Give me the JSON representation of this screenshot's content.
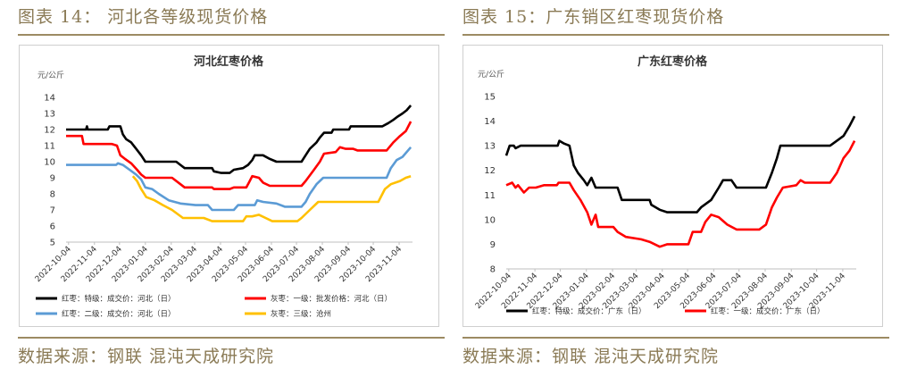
{
  "left": {
    "heading": "图表 14： 河北各等级现货价格",
    "source": "数据来源：钢联 混沌天成研究院"
  },
  "right": {
    "heading": "图表 15：广东销区红枣现货价格",
    "source": "数据来源：钢联 混沌天成研究院"
  },
  "colors": {
    "black": "#000000",
    "red": "#ff0000",
    "blue": "#5b9bd5",
    "gold": "#ffc000"
  },
  "chart_data": [
    {
      "type": "line",
      "title": "河北红枣价格",
      "ylabel": "元/公斤",
      "ylim": [
        5,
        14
      ],
      "yticks": [
        5,
        6,
        7,
        8,
        9,
        10,
        11,
        12,
        13,
        14
      ],
      "x_range": [
        "2022-10-01",
        "2023-11-20"
      ],
      "xticks": [
        "2022-10-04",
        "2022-11-04",
        "2022-12-04",
        "2023-01-04",
        "2023-02-04",
        "2023-03-04",
        "2023-04-04",
        "2023-05-04",
        "2023-06-04",
        "2023-07-04",
        "2023-08-04",
        "2023-09-04",
        "2023-10-04",
        "2023-11-04"
      ],
      "grid": false,
      "legend": "bottom",
      "series": [
        {
          "name": "红枣：特级：成交价：河北（日）",
          "color": "#000000",
          "points": [
            [
              "2022-10-01",
              12
            ],
            [
              "2022-10-25",
              12
            ],
            [
              "2022-10-26",
              12.2
            ],
            [
              "2022-10-27",
              12
            ],
            [
              "2022-11-20",
              12
            ],
            [
              "2022-11-22",
              12.2
            ],
            [
              "2022-12-05",
              12.2
            ],
            [
              "2022-12-08",
              11.7
            ],
            [
              "2022-12-12",
              11.4
            ],
            [
              "2022-12-18",
              11.2
            ],
            [
              "2022-12-24",
              10.8
            ],
            [
              "2022-12-30",
              10.4
            ],
            [
              "2023-01-04",
              10
            ],
            [
              "2023-02-10",
              10
            ],
            [
              "2023-02-15",
              9.8
            ],
            [
              "2023-02-20",
              9.6
            ],
            [
              "2023-03-25",
              9.6
            ],
            [
              "2023-03-27",
              9.4
            ],
            [
              "2023-04-05",
              9.3
            ],
            [
              "2023-04-15",
              9.3
            ],
            [
              "2023-04-20",
              9.5
            ],
            [
              "2023-05-01",
              9.6
            ],
            [
              "2023-05-07",
              9.8
            ],
            [
              "2023-05-12",
              10.1
            ],
            [
              "2023-05-15",
              10.4
            ],
            [
              "2023-05-25",
              10.4
            ],
            [
              "2023-06-01",
              10.2
            ],
            [
              "2023-06-10",
              10
            ],
            [
              "2023-07-10",
              10
            ],
            [
              "2023-07-15",
              10.4
            ],
            [
              "2023-07-20",
              10.8
            ],
            [
              "2023-07-28",
              11.2
            ],
            [
              "2023-08-01",
              11.5
            ],
            [
              "2023-08-06",
              11.8
            ],
            [
              "2023-08-15",
              11.8
            ],
            [
              "2023-08-17",
              12
            ],
            [
              "2023-09-05",
              12
            ],
            [
              "2023-09-07",
              12.2
            ],
            [
              "2023-10-15",
              12.2
            ],
            [
              "2023-10-22",
              12.4
            ],
            [
              "2023-10-28",
              12.6
            ],
            [
              "2023-11-02",
              12.8
            ],
            [
              "2023-11-08",
              13
            ],
            [
              "2023-11-13",
              13.2
            ],
            [
              "2023-11-18",
              13.5
            ]
          ]
        },
        {
          "name": "灰枣：一级：批发价格：河北（日）",
          "color": "#ff0000",
          "points": [
            [
              "2022-10-01",
              11.6
            ],
            [
              "2022-10-20",
              11.6
            ],
            [
              "2022-10-22",
              11.1
            ],
            [
              "2022-11-25",
              11.1
            ],
            [
              "2022-12-01",
              11
            ],
            [
              "2022-12-05",
              10.4
            ],
            [
              "2022-12-10",
              10.2
            ],
            [
              "2022-12-18",
              9.9
            ],
            [
              "2022-12-25",
              9.5
            ],
            [
              "2022-12-30",
              9.2
            ],
            [
              "2023-01-04",
              9
            ],
            [
              "2023-02-05",
              9
            ],
            [
              "2023-02-15",
              8.6
            ],
            [
              "2023-02-20",
              8.4
            ],
            [
              "2023-03-25",
              8.4
            ],
            [
              "2023-03-27",
              8.3
            ],
            [
              "2023-04-15",
              8.3
            ],
            [
              "2023-04-20",
              8.4
            ],
            [
              "2023-05-05",
              8.4
            ],
            [
              "2023-05-08",
              8.7
            ],
            [
              "2023-05-12",
              9.1
            ],
            [
              "2023-05-20",
              9
            ],
            [
              "2023-05-25",
              8.7
            ],
            [
              "2023-06-02",
              8.5
            ],
            [
              "2023-07-10",
              8.5
            ],
            [
              "2023-07-15",
              8.8
            ],
            [
              "2023-07-25",
              9.5
            ],
            [
              "2023-08-01",
              10
            ],
            [
              "2023-08-06",
              10.5
            ],
            [
              "2023-08-20",
              10.6
            ],
            [
              "2023-08-25",
              10.9
            ],
            [
              "2023-09-01",
              10.8
            ],
            [
              "2023-09-10",
              10.8
            ],
            [
              "2023-09-15",
              10.7
            ],
            [
              "2023-10-20",
              10.7
            ],
            [
              "2023-10-28",
              11.2
            ],
            [
              "2023-11-05",
              11.6
            ],
            [
              "2023-11-12",
              11.9
            ],
            [
              "2023-11-18",
              12.5
            ]
          ]
        },
        {
          "name": "红枣：二级：成交价：河北（日）",
          "color": "#5b9bd5",
          "points": [
            [
              "2022-10-01",
              9.8
            ],
            [
              "2022-11-30",
              9.8
            ],
            [
              "2022-12-02",
              9.9
            ],
            [
              "2022-12-08",
              9.8
            ],
            [
              "2022-12-16",
              9.5
            ],
            [
              "2022-12-24",
              9.2
            ],
            [
              "2022-12-30",
              8.9
            ],
            [
              "2023-01-04",
              8.4
            ],
            [
              "2023-01-12",
              8.3
            ],
            [
              "2023-01-20",
              8
            ],
            [
              "2023-02-01",
              7.6
            ],
            [
              "2023-02-15",
              7.4
            ],
            [
              "2023-03-05",
              7.3
            ],
            [
              "2023-03-20",
              7.3
            ],
            [
              "2023-03-25",
              7
            ],
            [
              "2023-04-20",
              7
            ],
            [
              "2023-04-25",
              7.3
            ],
            [
              "2023-05-15",
              7.3
            ],
            [
              "2023-05-18",
              7.6
            ],
            [
              "2023-05-25",
              7.5
            ],
            [
              "2023-06-10",
              7.4
            ],
            [
              "2023-06-20",
              7.2
            ],
            [
              "2023-07-10",
              7.2
            ],
            [
              "2023-07-15",
              7.5
            ],
            [
              "2023-07-20",
              8
            ],
            [
              "2023-07-28",
              8.6
            ],
            [
              "2023-08-05",
              9
            ],
            [
              "2023-10-20",
              9
            ],
            [
              "2023-10-25",
              9.6
            ],
            [
              "2023-11-01",
              10.1
            ],
            [
              "2023-11-08",
              10.3
            ],
            [
              "2023-11-18",
              10.9
            ]
          ]
        },
        {
          "name": "灰枣：三级：沧州",
          "color": "#ffc000",
          "points": [
            [
              "2022-12-20",
              9.1
            ],
            [
              "2022-12-25",
              8.8
            ],
            [
              "2022-12-30",
              8.3
            ],
            [
              "2023-01-05",
              7.8
            ],
            [
              "2023-01-15",
              7.6
            ],
            [
              "2023-01-25",
              7.3
            ],
            [
              "2023-02-05",
              7
            ],
            [
              "2023-02-18",
              6.5
            ],
            [
              "2023-03-15",
              6.5
            ],
            [
              "2023-03-25",
              6.3
            ],
            [
              "2023-05-01",
              6.3
            ],
            [
              "2023-05-05",
              6.6
            ],
            [
              "2023-05-12",
              6.6
            ],
            [
              "2023-05-20",
              6.7
            ],
            [
              "2023-05-28",
              6.5
            ],
            [
              "2023-06-05",
              6.3
            ],
            [
              "2023-07-05",
              6.3
            ],
            [
              "2023-07-10",
              6.5
            ],
            [
              "2023-07-20",
              7
            ],
            [
              "2023-07-30",
              7.5
            ],
            [
              "2023-10-10",
              7.5
            ],
            [
              "2023-10-18",
              8.3
            ],
            [
              "2023-10-25",
              8.6
            ],
            [
              "2023-11-05",
              8.8
            ],
            [
              "2023-11-12",
              9
            ],
            [
              "2023-11-18",
              9.1
            ]
          ]
        }
      ]
    },
    {
      "type": "line",
      "title": "广东红枣价格",
      "ylabel": "元/公斤",
      "ylim": [
        8,
        15
      ],
      "yticks": [
        8,
        9,
        10,
        11,
        12,
        13,
        14,
        15
      ],
      "x_range": [
        "2022-10-01",
        "2023-11-20"
      ],
      "xticks": [
        "2022-10-04",
        "2022-11-04",
        "2022-12-04",
        "2023-01-04",
        "2023-02-04",
        "2023-03-04",
        "2023-04-04",
        "2023-05-04",
        "2023-06-04",
        "2023-07-04",
        "2023-08-04",
        "2023-09-04",
        "2023-10-04",
        "2023-11-04"
      ],
      "grid": false,
      "legend": "bottom",
      "series": [
        {
          "name": "红枣：特级：成交价：广东（日）",
          "color": "#000000",
          "points": [
            [
              "2022-10-01",
              12.6
            ],
            [
              "2022-10-05",
              13
            ],
            [
              "2022-10-10",
              13
            ],
            [
              "2022-10-12",
              12.9
            ],
            [
              "2022-10-18",
              13
            ],
            [
              "2022-12-01",
              13
            ],
            [
              "2022-12-03",
              13.2
            ],
            [
              "2022-12-08",
              13.1
            ],
            [
              "2022-12-15",
              13
            ],
            [
              "2022-12-20",
              12.2
            ],
            [
              "2022-12-25",
              11.9
            ],
            [
              "2023-01-01",
              11.6
            ],
            [
              "2023-01-05",
              11.4
            ],
            [
              "2023-01-10",
              11.7
            ],
            [
              "2023-01-15",
              11.3
            ],
            [
              "2023-02-10",
              11.3
            ],
            [
              "2023-02-15",
              10.8
            ],
            [
              "2023-03-20",
              10.8
            ],
            [
              "2023-03-22",
              10.6
            ],
            [
              "2023-04-01",
              10.4
            ],
            [
              "2023-04-10",
              10.3
            ],
            [
              "2023-05-15",
              10.3
            ],
            [
              "2023-05-20",
              10.5
            ],
            [
              "2023-06-01",
              10.8
            ],
            [
              "2023-06-10",
              11.3
            ],
            [
              "2023-06-15",
              11.6
            ],
            [
              "2023-06-25",
              11.6
            ],
            [
              "2023-07-01",
              11.3
            ],
            [
              "2023-08-05",
              11.3
            ],
            [
              "2023-08-12",
              11.9
            ],
            [
              "2023-08-18",
              12.5
            ],
            [
              "2023-08-22",
              13
            ],
            [
              "2023-10-20",
              13
            ],
            [
              "2023-10-28",
              13.2
            ],
            [
              "2023-11-05",
              13.4
            ],
            [
              "2023-11-12",
              13.8
            ],
            [
              "2023-11-18",
              14.2
            ]
          ]
        },
        {
          "name": "红枣：一级：成交价：广东（日）",
          "color": "#ff0000",
          "points": [
            [
              "2022-10-01",
              11.4
            ],
            [
              "2022-10-08",
              11.5
            ],
            [
              "2022-10-12",
              11.3
            ],
            [
              "2022-10-15",
              11.4
            ],
            [
              "2022-10-22",
              11.1
            ],
            [
              "2022-10-28",
              11.3
            ],
            [
              "2022-11-05",
              11.3
            ],
            [
              "2022-11-15",
              11.4
            ],
            [
              "2022-11-30",
              11.4
            ],
            [
              "2022-12-02",
              11.5
            ],
            [
              "2022-12-15",
              11.5
            ],
            [
              "2022-12-20",
              11.2
            ],
            [
              "2022-12-28",
              10.8
            ],
            [
              "2023-01-05",
              10.3
            ],
            [
              "2023-01-10",
              9.8
            ],
            [
              "2023-01-15",
              10.2
            ],
            [
              "2023-01-18",
              9.7
            ],
            [
              "2023-02-05",
              9.7
            ],
            [
              "2023-02-10",
              9.5
            ],
            [
              "2023-02-20",
              9.3
            ],
            [
              "2023-03-10",
              9.2
            ],
            [
              "2023-03-20",
              9.1
            ],
            [
              "2023-04-01",
              8.9
            ],
            [
              "2023-04-10",
              9
            ],
            [
              "2023-05-05",
              9
            ],
            [
              "2023-05-10",
              9.5
            ],
            [
              "2023-05-20",
              9.5
            ],
            [
              "2023-05-25",
              9.9
            ],
            [
              "2023-06-01",
              10.2
            ],
            [
              "2023-06-10",
              10.1
            ],
            [
              "2023-06-20",
              9.8
            ],
            [
              "2023-07-01",
              9.6
            ],
            [
              "2023-07-28",
              9.6
            ],
            [
              "2023-08-05",
              9.8
            ],
            [
              "2023-08-12",
              10.5
            ],
            [
              "2023-08-18",
              10.9
            ],
            [
              "2023-08-25",
              11.3
            ],
            [
              "2023-09-10",
              11.4
            ],
            [
              "2023-09-15",
              11.6
            ],
            [
              "2023-09-20",
              11.5
            ],
            [
              "2023-10-20",
              11.5
            ],
            [
              "2023-10-28",
              11.9
            ],
            [
              "2023-11-05",
              12.5
            ],
            [
              "2023-11-12",
              12.8
            ],
            [
              "2023-11-18",
              13.2
            ]
          ]
        }
      ]
    }
  ]
}
